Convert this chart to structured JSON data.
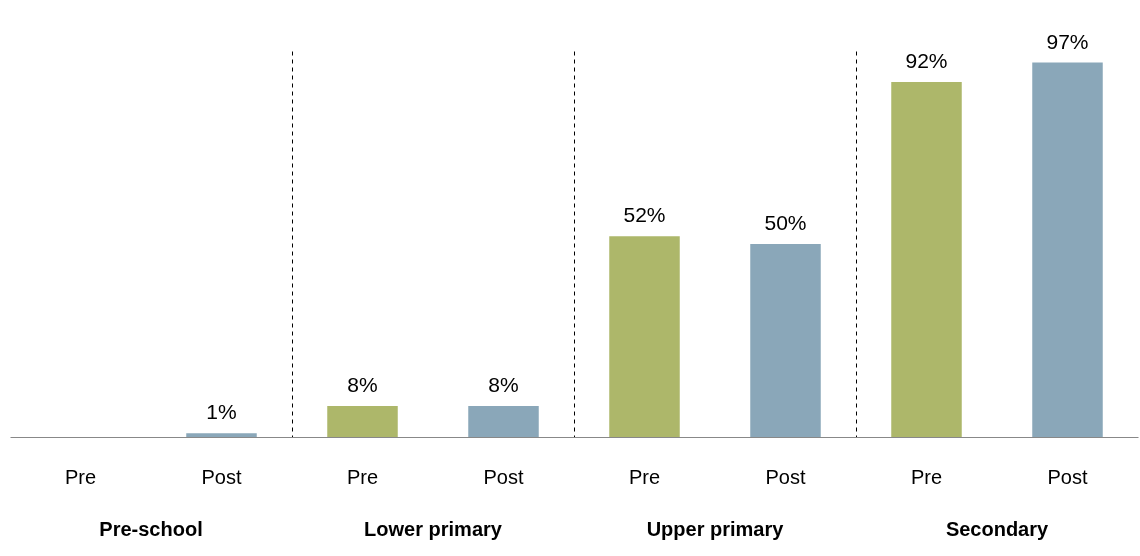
{
  "chart_data": {
    "type": "bar",
    "categories": [
      "Pre-school",
      "Lower primary",
      "Upper primary",
      "Secondary"
    ],
    "series": [
      {
        "name": "Pre",
        "color": "#adb76a",
        "values": [
          null,
          8,
          52,
          92
        ],
        "value_labels": [
          null,
          "8%",
          "52%",
          "92%"
        ]
      },
      {
        "name": "Post",
        "color": "#8aa7b9",
        "values": [
          1,
          8,
          50,
          97
        ],
        "value_labels": [
          "1%",
          "8%",
          "50%",
          "97%"
        ]
      }
    ],
    "grid": "x",
    "tick_labels": "x"
  }
}
